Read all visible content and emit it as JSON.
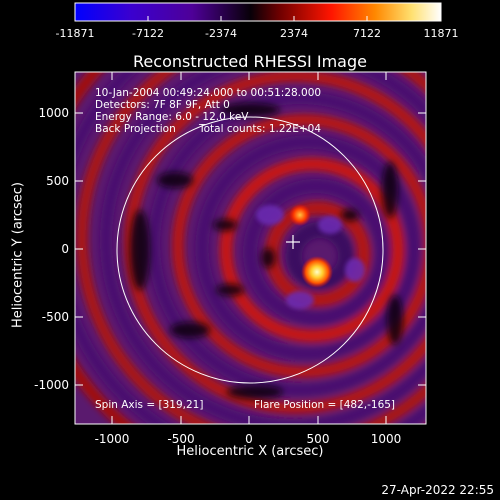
{
  "colorbar": {
    "ticks": [
      "-11871",
      "-7122",
      "-2374",
      "2374",
      "7122",
      "11871"
    ],
    "colors": [
      "#0000ff",
      "#3f00d8",
      "#5a00c8",
      "#000000",
      "#7a0000",
      "#ff1a00",
      "#ff8c00",
      "#ffe066",
      "#ffffff"
    ]
  },
  "title": "Reconstructed RHESSI Image",
  "info": {
    "time": "10-Jan-2004 00:49:24.000 to 00:51:28.000",
    "detectors": "Detectors: 7F 8F 9F, Att 0",
    "energy": "Energy Range: 6.0 - 12.0 keV",
    "method": "Back Projection",
    "counts": "Total counts: 1.22E+04"
  },
  "axes": {
    "xlabel": "Heliocentric X (arcsec)",
    "ylabel": "Heliocentric Y (arcsec)",
    "xticks": [
      "-1000",
      "-500",
      "0",
      "500",
      "1000"
    ],
    "yticks": [
      "1000",
      "500",
      "0",
      "-500",
      "-1000"
    ]
  },
  "spin_axis": "Spin Axis = [319,21]",
  "flare_position": "Flare Position = [482,-165]",
  "date": "27-Apr-2022 22:55"
}
